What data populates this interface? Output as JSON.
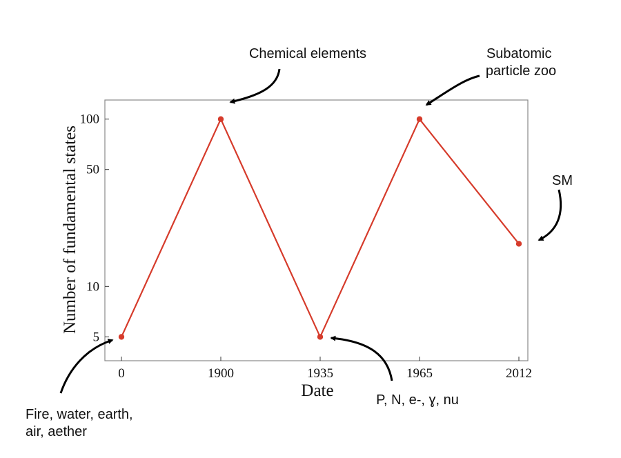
{
  "chart_data": {
    "type": "line",
    "xlabel": "Date",
    "ylabel": "Number of fundamental states",
    "y_scale": "log",
    "ylim": [
      3.6,
      130
    ],
    "grid": false,
    "categories": [
      "0",
      "1900",
      "1935",
      "1965",
      "2012"
    ],
    "series": [
      {
        "values": [
          5,
          100,
          5,
          100,
          18
        ]
      }
    ],
    "y_ticks": [
      "5",
      "10",
      "50",
      "100"
    ],
    "series_color": "#d63b2b",
    "annotations": [
      {
        "category": "0",
        "lines": [
          "Fire, water, earth,",
          "air, aether"
        ]
      },
      {
        "category": "1900",
        "lines": [
          "Chemical elements"
        ]
      },
      {
        "category": "1935",
        "lines": [
          "P, N, e-, ɣ, nu"
        ]
      },
      {
        "category": "1965",
        "lines": [
          "Subatomic",
          "particle zoo"
        ]
      },
      {
        "category": "2012",
        "lines": [
          "SM"
        ]
      }
    ]
  }
}
